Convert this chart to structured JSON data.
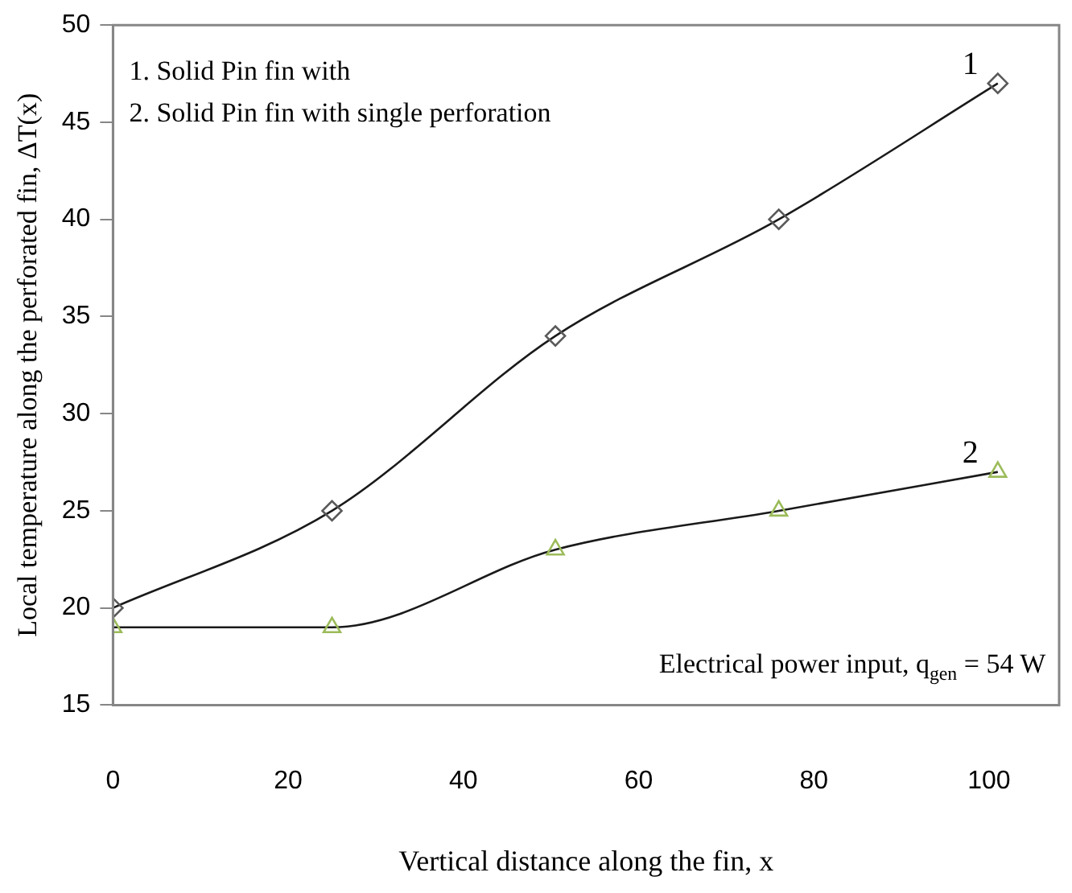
{
  "chart_data": {
    "type": "line",
    "xlabel": "Vertical distance along the fin, x",
    "ylabel": "Local temperature along the perforated fin, ΔT(x)",
    "x": [
      0,
      25,
      50.5,
      76,
      101
    ],
    "series": [
      {
        "name": "1",
        "color": "#595959",
        "marker": "diamond",
        "values": [
          20,
          25,
          34,
          40,
          47
        ]
      },
      {
        "name": "2",
        "color": "#9bbb59",
        "marker": "triangle",
        "values": [
          19,
          19,
          23,
          25,
          27
        ]
      }
    ],
    "xlim": [
      0,
      108
    ],
    "xticks": [
      0,
      20,
      40,
      60,
      80,
      100
    ],
    "ylim": [
      15,
      50
    ],
    "yticks": [
      15,
      20,
      25,
      30,
      35,
      40,
      45,
      50
    ],
    "grid": false,
    "legend": false,
    "annotations": [
      "1. Solid Pin fin with",
      "2. Solid Pin fin with single perforation",
      "Electrical power input, q$_{gen}$ = 54 W"
    ]
  }
}
